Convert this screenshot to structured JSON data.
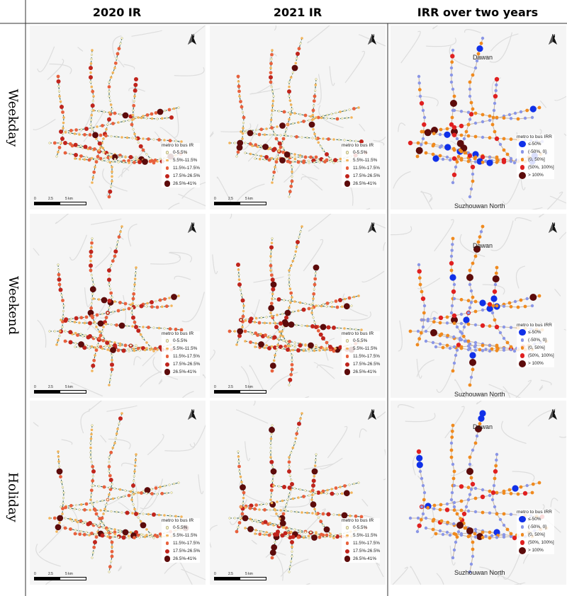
{
  "columns": [
    "2020 IR",
    "2021 IR",
    "IRR over two years"
  ],
  "rows": [
    "Weekday",
    "Weekend",
    "Holiday"
  ],
  "north_label": "N",
  "scale": {
    "ticks": [
      "0",
      "2.5",
      "5 km"
    ]
  },
  "place_labels": {
    "dawan": "Dawan",
    "suzhouwan_north": "Suzhouwan North"
  },
  "ir_legend": {
    "title": "metro to bus IR",
    "classes": [
      {
        "label": "0-5.5%",
        "color": "#fffbcc"
      },
      {
        "label": "5.5%-11.5%",
        "color": "#f2b45a"
      },
      {
        "label": "11.5%-17.5%",
        "color": "#e8603c"
      },
      {
        "label": "17.5%-26.5%",
        "color": "#c0241c"
      },
      {
        "label": "26.5%-41%",
        "color": "#5c0b0b"
      }
    ]
  },
  "irr_legend": {
    "title": "metro to bus IRR",
    "classes": [
      {
        "label": "≤-50%",
        "color": "#1030e8"
      },
      {
        "label": "(-50%, 0]",
        "color": "#8a96e6"
      },
      {
        "label": "(0, 50%]",
        "color": "#f08a1e"
      },
      {
        "label": "(50%, 100%]",
        "color": "#e02020"
      },
      {
        "label": "> 100%",
        "color": "#5c0b0b"
      }
    ]
  },
  "colors": {
    "frame": "#333333",
    "map_bg": "#f5f5f5",
    "roads": "#dddddd",
    "metro_line": "#3f6e60"
  }
}
